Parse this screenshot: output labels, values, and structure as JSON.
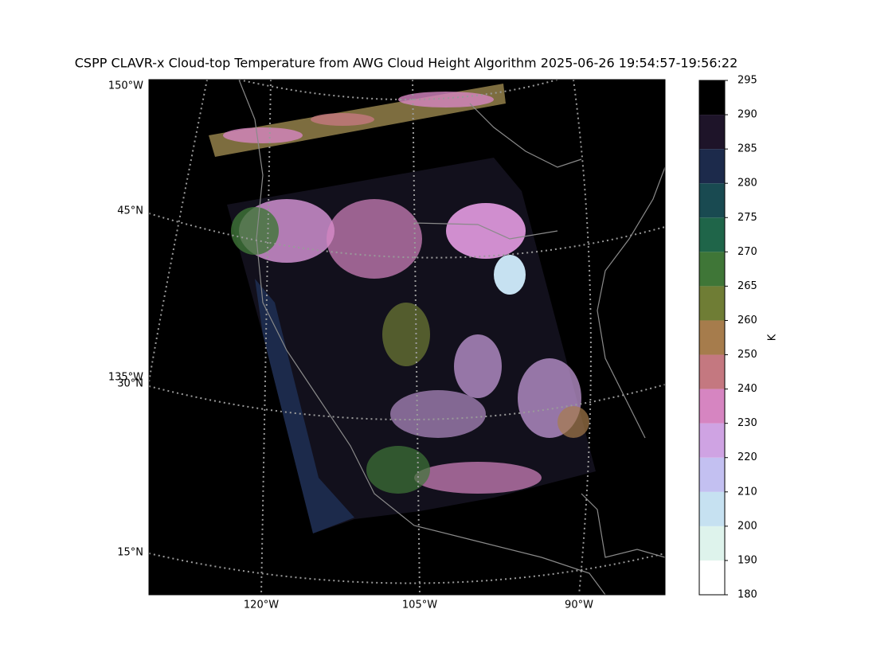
{
  "title": "CSPP CLAVR-x Cloud-top Temperature from AWG Cloud Height Algorithm 2025-06-26 19:54:57-19:56:22",
  "map": {
    "left_labels": [
      "150°W",
      "45°N",
      "135°W",
      "30°N",
      "15°N"
    ],
    "bottom_labels": [
      "120°W",
      "105°W",
      "90°W"
    ]
  },
  "colorbar": {
    "label": "K",
    "ticks": [
      180,
      190,
      200,
      210,
      220,
      230,
      240,
      250,
      260,
      265,
      270,
      275,
      280,
      285,
      290,
      295
    ],
    "colors": [
      "#ffffff",
      "#def3ec",
      "#c6e1f1",
      "#c3c0f1",
      "#cfa3e3",
      "#d685c1",
      "#c47880",
      "#a67c4c",
      "#6f7d35",
      "#3f7637",
      "#1f6549",
      "#194a51",
      "#1c2a4b",
      "#1e1429",
      "#000000"
    ]
  }
}
